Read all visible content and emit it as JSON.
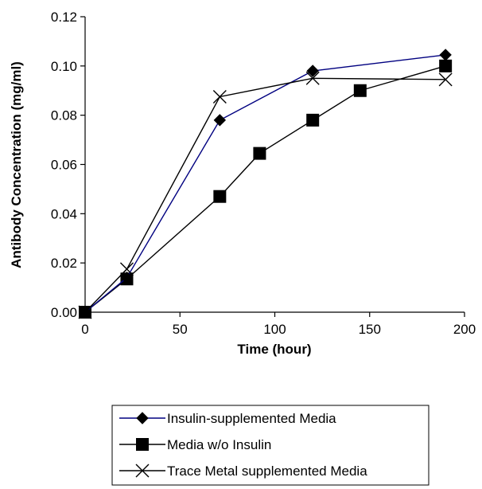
{
  "chart_data": {
    "type": "line",
    "title": "",
    "xlabel": "Time (hour)",
    "ylabel": "Antibody Concentration (mg/ml)",
    "xlim": [
      0,
      200
    ],
    "ylim": [
      0,
      0.12
    ],
    "xticks": [
      0,
      50,
      100,
      150,
      200
    ],
    "xtick_labels": [
      "0",
      "50",
      "100",
      "150",
      "200"
    ],
    "yticks": [
      0,
      0.02,
      0.04,
      0.06,
      0.08,
      0.1,
      0.12
    ],
    "ytick_labels": [
      "0.00",
      "0.02",
      "0.04",
      "0.06",
      "0.08",
      "0.10",
      "0.12"
    ],
    "grid": false,
    "legend_position": "bottom",
    "series": [
      {
        "name": "Insulin-supplemented Media",
        "marker": "diamond",
        "color": "#000080",
        "points": [
          [
            0,
            0.0
          ],
          [
            22,
            0.014
          ],
          [
            71,
            0.078
          ],
          [
            120,
            0.098
          ],
          [
            190,
            0.1045
          ]
        ]
      },
      {
        "name": "Media w/o Insulin",
        "marker": "square",
        "color": "#000000",
        "points": [
          [
            0,
            0.0
          ],
          [
            22,
            0.0135
          ],
          [
            71,
            0.047
          ],
          [
            92,
            0.0645
          ],
          [
            120,
            0.078
          ],
          [
            145,
            0.09
          ],
          [
            190,
            0.1
          ]
        ]
      },
      {
        "name": "Trace Metal supplemented Media",
        "marker": "x",
        "color": "#000000",
        "points": [
          [
            0,
            0.0
          ],
          [
            22,
            0.0175
          ],
          [
            71,
            0.0875
          ],
          [
            120,
            0.095
          ],
          [
            190,
            0.0945
          ]
        ]
      }
    ]
  }
}
